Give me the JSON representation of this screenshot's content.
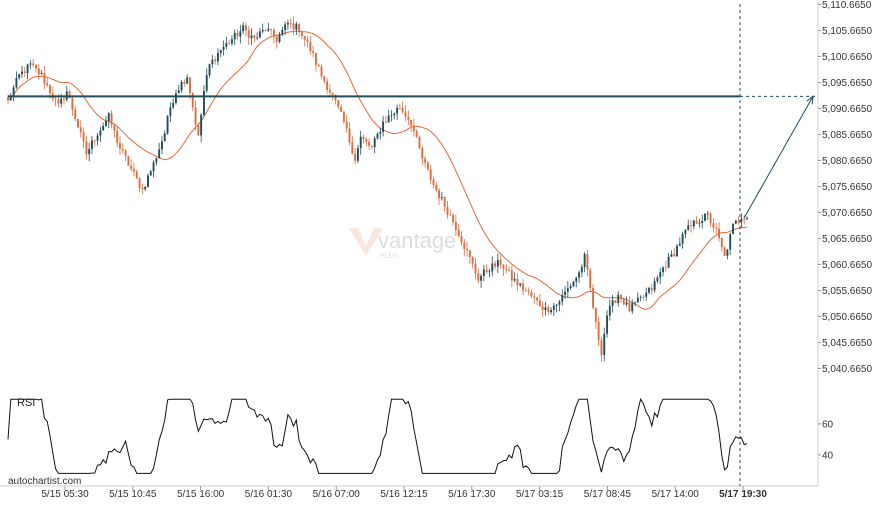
{
  "chart_data": {
    "type": "candlestick",
    "symbol_watermark": "vantage",
    "watermark_sub": "PLUS",
    "credit": "autochartist.com",
    "price_axis": {
      "ticks": [
        "5,110.6650",
        "5,105.6650",
        "5,100.6650",
        "5,095.6650",
        "5,090.6650",
        "5,085.6650",
        "5,080.6650",
        "5,075.6650",
        "5,070.6650",
        "5,065.6650",
        "5,060.6650",
        "5,055.6650",
        "5,050.6650",
        "5,045.6650",
        "5,040.6650"
      ],
      "tick_values": [
        5110.665,
        5105.665,
        5100.665,
        5095.665,
        5090.665,
        5085.665,
        5080.665,
        5075.665,
        5070.665,
        5065.665,
        5060.665,
        5055.665,
        5050.665,
        5045.665,
        5040.665
      ],
      "range": [
        5036.5,
        5111.5
      ]
    },
    "time_axis": {
      "ticks": [
        "5/15 05:30",
        "5/15 10:45",
        "5/15 16:00",
        "5/16 01:30",
        "5/16 07:00",
        "5/16 12:15",
        "5/16 17:30",
        "5/17 03:15",
        "5/17 08:45",
        "5/17 14:00",
        "5/17 19:30"
      ],
      "current_index": 10
    },
    "resistance_level": 5093.0,
    "forecast_target": 5093.0,
    "rsi": {
      "label": "RSI",
      "ticks": [
        "60",
        "40"
      ],
      "tick_values": [
        60,
        40
      ],
      "range": [
        25,
        80
      ]
    },
    "price_path": [
      [
        0,
        5092
      ],
      [
        4,
        5097
      ],
      [
        8,
        5099
      ],
      [
        12,
        5097
      ],
      [
        15,
        5094
      ],
      [
        18,
        5091
      ],
      [
        21,
        5094
      ],
      [
        24,
        5089
      ],
      [
        28,
        5082
      ],
      [
        32,
        5086
      ],
      [
        36,
        5089
      ],
      [
        40,
        5083
      ],
      [
        44,
        5079
      ],
      [
        48,
        5075
      ],
      [
        52,
        5080
      ],
      [
        56,
        5086
      ],
      [
        58,
        5091
      ],
      [
        60,
        5094
      ],
      [
        64,
        5097
      ],
      [
        68,
        5085
      ],
      [
        70,
        5094
      ],
      [
        72,
        5099
      ],
      [
        76,
        5102
      ],
      [
        80,
        5104
      ],
      [
        84,
        5106
      ],
      [
        88,
        5104
      ],
      [
        92,
        5106
      ],
      [
        96,
        5104
      ],
      [
        100,
        5107
      ],
      [
        104,
        5106
      ],
      [
        108,
        5102
      ],
      [
        112,
        5097
      ],
      [
        116,
        5093
      ],
      [
        120,
        5088
      ],
      [
        124,
        5081
      ],
      [
        126,
        5085
      ],
      [
        130,
        5083
      ],
      [
        134,
        5088
      ],
      [
        138,
        5090
      ],
      [
        140,
        5091
      ],
      [
        144,
        5088
      ],
      [
        148,
        5081
      ],
      [
        152,
        5076
      ],
      [
        156,
        5072
      ],
      [
        160,
        5068
      ],
      [
        164,
        5063
      ],
      [
        168,
        5058
      ],
      [
        172,
        5060
      ],
      [
        176,
        5061
      ],
      [
        180,
        5058
      ],
      [
        184,
        5056
      ],
      [
        188,
        5054
      ],
      [
        192,
        5052
      ],
      [
        196,
        5053
      ],
      [
        200,
        5056
      ],
      [
        204,
        5059
      ],
      [
        206,
        5062
      ],
      [
        208,
        5056
      ],
      [
        210,
        5049
      ],
      [
        212,
        5044
      ],
      [
        214,
        5051
      ],
      [
        218,
        5055
      ],
      [
        222,
        5052
      ],
      [
        226,
        5054
      ],
      [
        230,
        5056
      ],
      [
        234,
        5060
      ],
      [
        238,
        5063
      ],
      [
        242,
        5067
      ],
      [
        246,
        5069
      ],
      [
        250,
        5070
      ],
      [
        253,
        5067
      ],
      [
        256,
        5062
      ],
      [
        259,
        5068
      ],
      [
        262,
        5070
      ]
    ]
  }
}
